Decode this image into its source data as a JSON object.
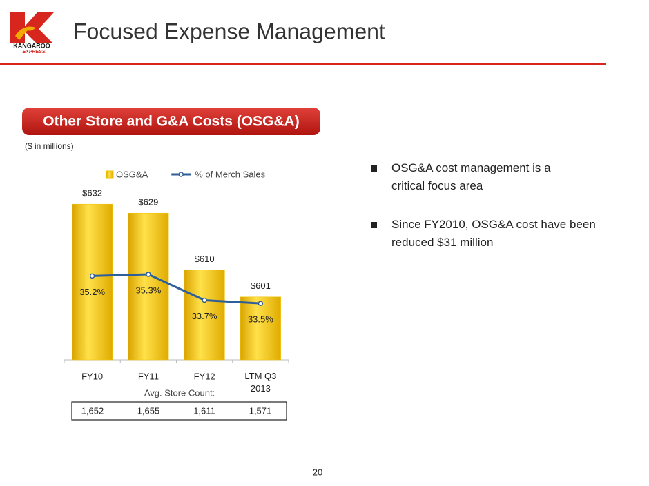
{
  "header": {
    "logo_name": "KANGAROO",
    "logo_tagline": "EXPRESS.",
    "title": "Focused Expense Management"
  },
  "banner": "Other Store and G&A Costs (OSG&A)",
  "note": "($ in millions)",
  "chart_data": {
    "type": "bar",
    "categories": [
      "FY10",
      "FY11",
      "FY12",
      "LTM Q3 2013"
    ],
    "ylim": [
      580,
      650
    ],
    "y2lim": [
      30,
      43
    ],
    "series": [
      {
        "name": "OSG&A",
        "type": "bar",
        "color": "#f2c200",
        "values": [
          632,
          629,
          610,
          601
        ],
        "value_labels": [
          "$632",
          "$629",
          "$610",
          "$601"
        ]
      },
      {
        "name": "% of Merch Sales",
        "type": "line",
        "axis": "y2",
        "color": "#2e5f9a",
        "values": [
          35.2,
          35.3,
          33.7,
          33.5
        ],
        "value_labels": [
          "35.2%",
          "35.3%",
          "33.7%",
          "33.5%"
        ]
      }
    ]
  },
  "store_count": {
    "label": "Avg. Store Count:",
    "values": [
      "1,652",
      "1,655",
      "1,611",
      "1,571"
    ]
  },
  "bullets": [
    "OSG&A cost management is a critical focus area",
    "Since FY2010, OSG&A cost have been reduced $31 million"
  ],
  "page_number": "20"
}
